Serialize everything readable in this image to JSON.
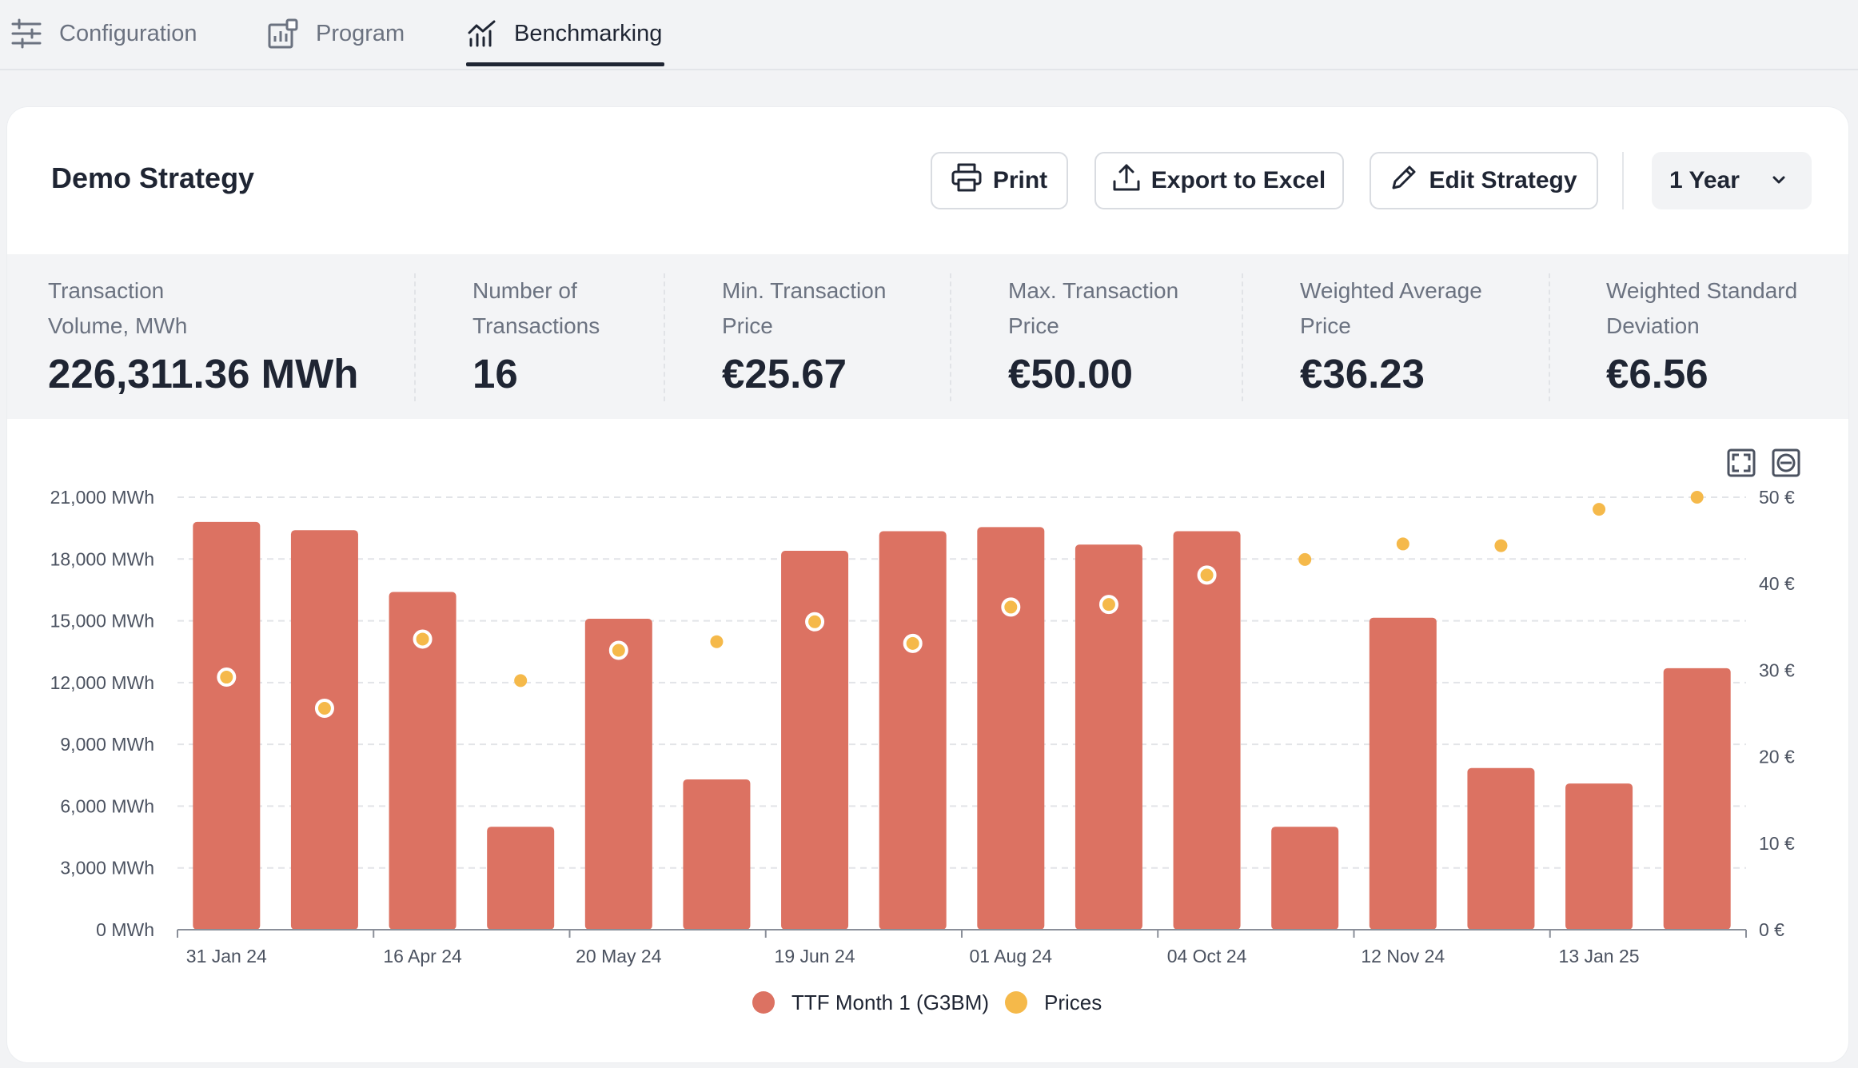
{
  "tabs": [
    {
      "label": "Configuration",
      "icon": "sliders-icon",
      "active": false
    },
    {
      "label": "Program",
      "icon": "program-chart-icon",
      "active": false
    },
    {
      "label": "Benchmarking",
      "icon": "benchmark-chart-icon",
      "active": true
    }
  ],
  "header": {
    "title": "Demo Strategy",
    "print_label": "Print",
    "export_label": "Export to Excel",
    "edit_label": "Edit Strategy",
    "period_value": "1 Year"
  },
  "stats": [
    {
      "label_line1": "Transaction",
      "label_line2": "Volume, MWh",
      "value": "226,311.36 MWh"
    },
    {
      "label_line1": "Number of",
      "label_line2": "Transactions",
      "value": "16"
    },
    {
      "label_line1": "Min. Transaction",
      "label_line2": "Price",
      "value": "€25.67"
    },
    {
      "label_line1": "Max. Transaction",
      "label_line2": "Price",
      "value": "€50.00"
    },
    {
      "label_line1": "Weighted Average",
      "label_line2": "Price",
      "value": "€36.23"
    },
    {
      "label_line1": "Weighted Standard",
      "label_line2": "Deviation",
      "value": "€6.56"
    }
  ],
  "colors": {
    "bar": "#dc7262",
    "price_dot": "#f5b94a",
    "accent_dark": "#1f2533"
  },
  "chart_data": {
    "type": "bar",
    "x_tick_labels": [
      "31 Jan 24",
      "16 Apr 24",
      "20 May 24",
      "19 Jun 24",
      "01 Aug 24",
      "04 Oct 24",
      "12 Nov 24",
      "13 Jan 25"
    ],
    "y_left": {
      "ticks": [
        "0 MWh",
        "3,000 MWh",
        "6,000 MWh",
        "9,000 MWh",
        "12,000 MWh",
        "15,000 MWh",
        "18,000 MWh",
        "21,000 MWh"
      ],
      "range": [
        0,
        21000
      ]
    },
    "y_right": {
      "ticks": [
        "0 €",
        "10 €",
        "20 €",
        "30 €",
        "40 €",
        "50 €"
      ],
      "range": [
        0,
        50
      ]
    },
    "grid": true,
    "legend_position": "bottom-center",
    "series": [
      {
        "name": "TTF Month 1 (G3BM)",
        "type": "bar",
        "values": [
          19800,
          19400,
          16400,
          5000,
          15100,
          7300,
          18400,
          19350,
          19550,
          18700,
          19350,
          5000,
          15150,
          7850,
          7100,
          12700
        ]
      },
      {
        "name": "Prices",
        "type": "scatter",
        "values": [
          29.2,
          25.6,
          33.6,
          28.8,
          32.3,
          33.3,
          35.6,
          33.1,
          37.3,
          37.6,
          41.0,
          42.8,
          44.6,
          44.4,
          48.6,
          50.0
        ],
        "outlined": [
          true,
          true,
          true,
          false,
          true,
          false,
          true,
          true,
          true,
          true,
          true,
          false,
          false,
          false,
          false,
          false
        ]
      }
    ]
  }
}
